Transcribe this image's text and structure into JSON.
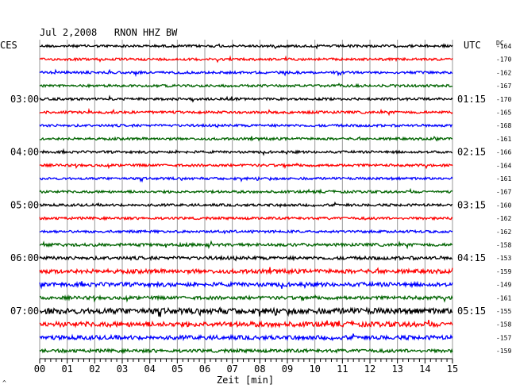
{
  "chart_data": {
    "type": "line",
    "title": "Jul 2,2008   RNON HHZ BW",
    "left_timezone": "CES",
    "right_timezone": "UTC",
    "dc_label": "DC",
    "xlabel": "Zeit [min]",
    "x_ticks": [
      "00",
      "01",
      "02",
      "03",
      "04",
      "05",
      "06",
      "07",
      "08",
      "09",
      "10",
      "11",
      "12",
      "13",
      "14",
      "15"
    ],
    "xlim": [
      0,
      15
    ],
    "trace_colors": [
      "#000000",
      "#ff0000",
      "#0000ff",
      "#006400"
    ],
    "left_hour_labels": [
      "03:00",
      "04:00",
      "05:00",
      "06:00",
      "07:00"
    ],
    "right_hour_labels": [
      "01:15",
      "02:15",
      "03:15",
      "04:15",
      "05:15"
    ],
    "dc_offsets": [
      -164,
      -170,
      -162,
      -167,
      -170,
      -165,
      -168,
      -161,
      -166,
      -164,
      -161,
      -167,
      -160,
      -162,
      -162,
      -158,
      -153,
      -159,
      -149,
      -161,
      -155,
      -158,
      -157,
      -159
    ],
    "trace_amplitudes": [
      1.5,
      1.5,
      1.5,
      1.5,
      1.5,
      1.5,
      1.5,
      1.5,
      1.5,
      1.5,
      1.5,
      1.5,
      1.5,
      1.5,
      1.5,
      1.8,
      2.0,
      2.5,
      2.5,
      2.0,
      3.5,
      3.0,
      2.5,
      2.0
    ]
  }
}
